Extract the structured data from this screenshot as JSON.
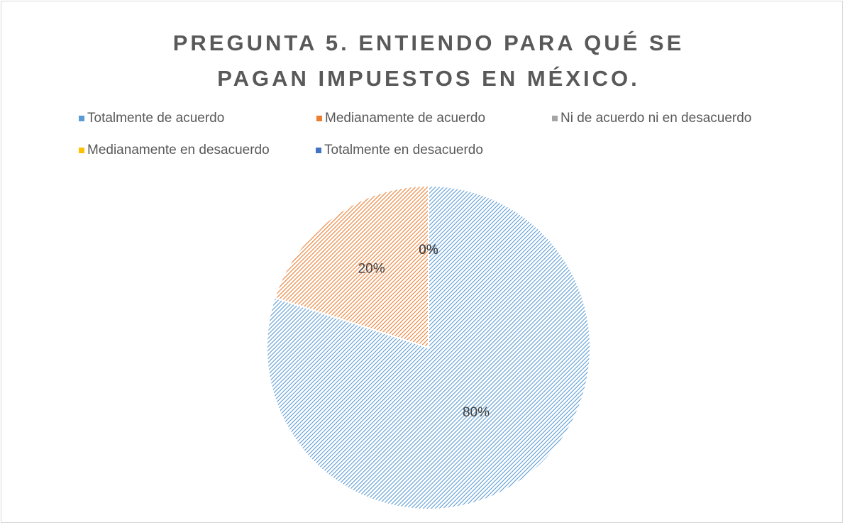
{
  "chart_data": {
    "type": "pie",
    "title": "PREGUNTA 5. ENTIENDO PARA QUÉ SE PAGAN IMPUESTOS EN MÉXICO.",
    "categories": [
      "Totalmente de acuerdo",
      "Medianamente de acuerdo",
      "Ni de acuerdo ni en desacuerdo",
      "Medianamente en desacuerdo",
      "Totalmente en desacuerdo"
    ],
    "values": [
      80,
      20,
      0,
      0,
      0
    ],
    "value_labels": [
      "80%",
      "20%",
      "0%",
      "0%",
      "0%"
    ],
    "colors": [
      "#5b9bd5",
      "#ed7d31",
      "#a5a5a5",
      "#ffc000",
      "#4472c4"
    ],
    "legend": "top"
  }
}
